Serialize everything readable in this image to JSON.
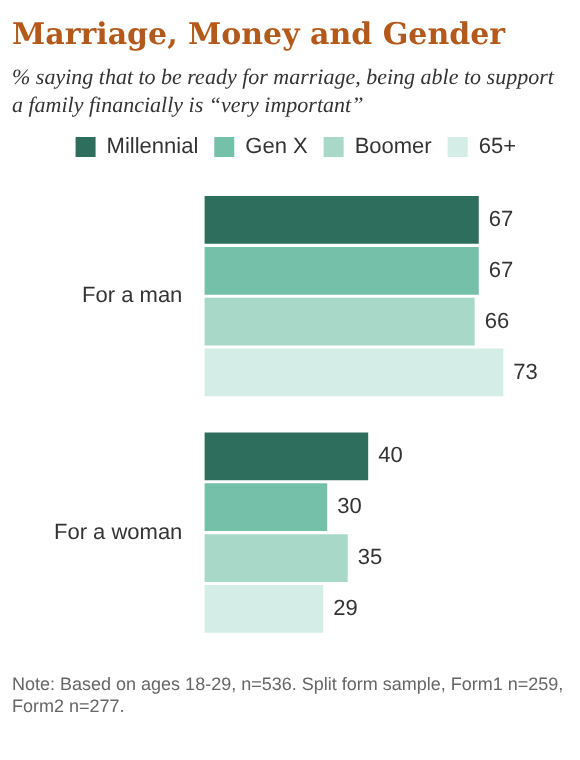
{
  "chart_data": {
    "type": "bar",
    "orientation": "horizontal",
    "title": "Marriage, Money and Gender",
    "subtitle": "% saying that to be ready for marriage, being able to support a family financially is “very important”",
    "categories": [
      "For a man",
      "For a woman"
    ],
    "series": [
      {
        "name": "Millennial",
        "color": "#2d6e5c",
        "values": [
          67,
          40
        ]
      },
      {
        "name": "Gen X",
        "color": "#74c0a8",
        "values": [
          67,
          30
        ]
      },
      {
        "name": "Boomer",
        "color": "#a8d8c8",
        "values": [
          66,
          35
        ]
      },
      {
        "name": "65+",
        "color": "#d4ede6",
        "values": [
          73,
          29
        ]
      }
    ],
    "data_labels": true,
    "legend": "top",
    "annotations": [
      "Note: Based on ages 18-29, n=536. Split form sample, Form1 n=259, Form2 n=277."
    ]
  }
}
